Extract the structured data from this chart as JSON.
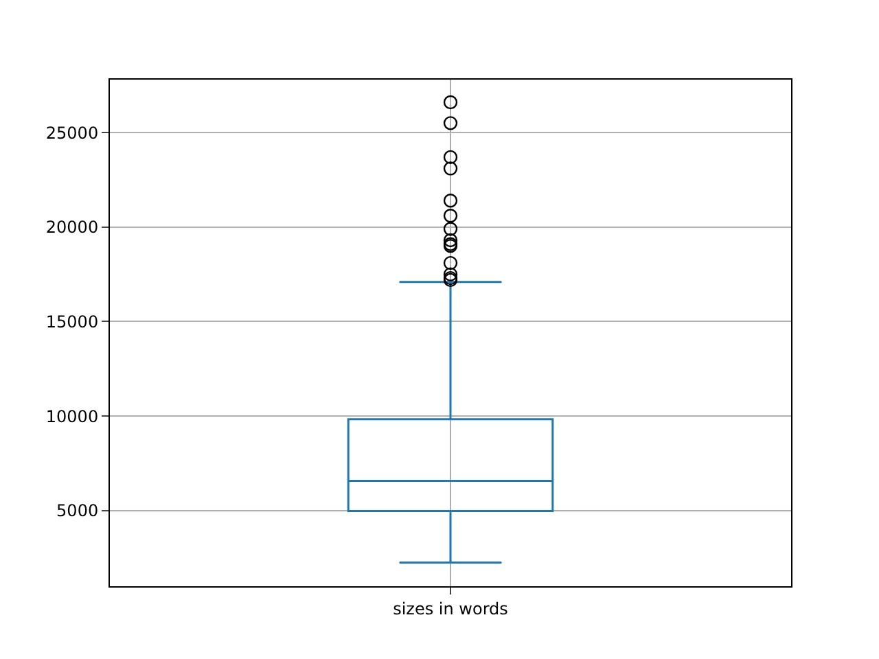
{
  "chart_data": {
    "type": "box",
    "categories": [
      "sizes in words"
    ],
    "series": [
      {
        "color": "#1f77b4",
        "boxes": [
          {
            "low": 2250,
            "q1": 4980,
            "median": 6570,
            "q3": 9830,
            "high": 17100,
            "outliers": [
              26600,
              25500,
              23700,
              23100,
              21400,
              20600,
              19900,
              19300,
              19100,
              19000,
              18100,
              17500,
              17300,
              17200
            ]
          }
        ]
      }
    ],
    "ylim": [
      1000,
      27800
    ],
    "yticks": [
      5000,
      10000,
      15000,
      20000,
      25000
    ],
    "grid": true,
    "marker": "circle"
  }
}
